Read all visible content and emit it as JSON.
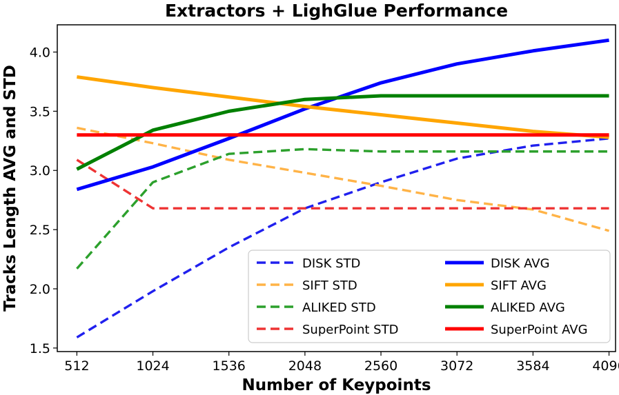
{
  "chart_data": {
    "type": "line",
    "title": "Extractors + LighGlue Performance",
    "xlabel": "Number of Keypoints",
    "ylabel": "Tracks Length AVG and STD",
    "x": [
      512,
      1024,
      1536,
      2048,
      2560,
      3072,
      3584,
      4096
    ],
    "xticks": [
      "512",
      "1024",
      "1536",
      "2048",
      "2560",
      "3072",
      "3584",
      "4096"
    ],
    "yticks": [
      "1.5",
      "2.0",
      "2.5",
      "3.0",
      "3.5",
      "4.0"
    ],
    "ytick_values": [
      1.5,
      2.0,
      2.5,
      3.0,
      3.5,
      4.0
    ],
    "xlim": [
      380,
      4140
    ],
    "ylim": [
      1.47,
      4.23
    ],
    "grid": false,
    "legend_position": "lower-right",
    "series": [
      {
        "name": "DISK STD",
        "style": "dashed",
        "color": "#2020ee",
        "values": [
          1.59,
          1.98,
          2.35,
          2.68,
          2.9,
          3.1,
          3.21,
          3.27
        ]
      },
      {
        "name": "SIFT STD",
        "style": "dashed",
        "color": "#ffb347",
        "values": [
          3.36,
          3.23,
          3.09,
          2.98,
          2.87,
          2.75,
          2.67,
          2.49
        ]
      },
      {
        "name": "ALIKED STD",
        "style": "dashed",
        "color": "#2ca02c",
        "values": [
          2.17,
          2.9,
          3.14,
          3.18,
          3.16,
          3.16,
          3.16,
          3.16
        ]
      },
      {
        "name": "SuperPoint STD",
        "style": "dashed",
        "color": "#ee3333",
        "values": [
          3.09,
          2.68,
          2.68,
          2.68,
          2.68,
          2.68,
          2.68,
          2.68
        ]
      },
      {
        "name": "DISK AVG",
        "style": "solid",
        "color": "#0000ff",
        "values": [
          2.84,
          3.03,
          3.27,
          3.52,
          3.74,
          3.9,
          4.01,
          4.1
        ]
      },
      {
        "name": "SIFT AVG",
        "style": "solid",
        "color": "#ffa500",
        "values": [
          3.79,
          3.7,
          3.62,
          3.54,
          3.47,
          3.4,
          3.33,
          3.28
        ]
      },
      {
        "name": "ALIKED AVG",
        "style": "solid",
        "color": "#008000",
        "values": [
          3.01,
          3.34,
          3.5,
          3.6,
          3.63,
          3.63,
          3.63,
          3.63
        ]
      },
      {
        "name": "SuperPoint AVG",
        "style": "solid",
        "color": "#ff0000",
        "values": [
          3.3,
          3.3,
          3.3,
          3.3,
          3.3,
          3.3,
          3.3,
          3.3
        ]
      }
    ]
  }
}
